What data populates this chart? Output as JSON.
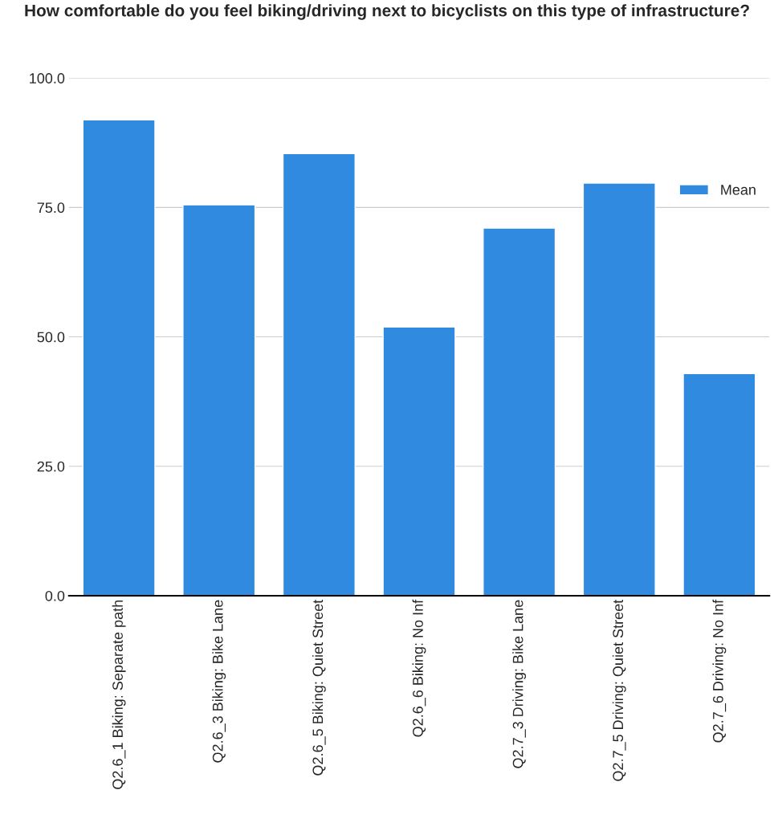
{
  "chart_data": {
    "type": "bar",
    "title": "How comfortable do you feel biking/driving next to bicyclists on this type of infrastructure?",
    "categories": [
      "Q2.6_1 Biking: Separate path",
      "Q2.6_3 Biking: Bike Lane",
      "Q2.6_5 Biking: Quiet Street",
      "Q2.6_6 Biking: No Inf",
      "Q2.7_3 Driving: Bike Lane",
      "Q2.7_5 Driving: Quiet Street",
      "Q2.7_6 Driving: No Inf"
    ],
    "series": [
      {
        "name": "Mean",
        "color": "#2f8ae0",
        "values": [
          91.9,
          75.5,
          85.4,
          51.9,
          71.0,
          79.7,
          42.9
        ]
      }
    ],
    "ylim": [
      0,
      100
    ],
    "yticks": [
      {
        "value": 0,
        "label": "0.0"
      },
      {
        "value": 25,
        "label": "25.0"
      },
      {
        "value": 50,
        "label": "50.0"
      },
      {
        "value": 75,
        "label": "75.0"
      },
      {
        "value": 100,
        "label": "100.0"
      }
    ],
    "grid": "y",
    "legend": "right"
  }
}
